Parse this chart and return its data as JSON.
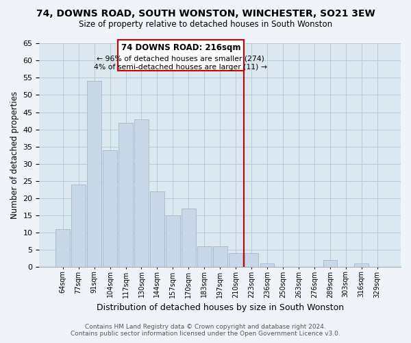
{
  "title": "74, DOWNS ROAD, SOUTH WONSTON, WINCHESTER, SO21 3EW",
  "subtitle": "Size of property relative to detached houses in South Wonston",
  "xlabel": "Distribution of detached houses by size in South Wonston",
  "ylabel": "Number of detached properties",
  "bar_labels": [
    "64sqm",
    "77sqm",
    "91sqm",
    "104sqm",
    "117sqm",
    "130sqm",
    "144sqm",
    "157sqm",
    "170sqm",
    "183sqm",
    "197sqm",
    "210sqm",
    "223sqm",
    "236sqm",
    "250sqm",
    "263sqm",
    "276sqm",
    "289sqm",
    "303sqm",
    "316sqm",
    "329sqm"
  ],
  "bar_values": [
    11,
    24,
    54,
    34,
    42,
    43,
    22,
    15,
    17,
    6,
    6,
    4,
    4,
    1,
    0,
    0,
    0,
    2,
    0,
    1,
    0
  ],
  "bar_color": "#c8d8e8",
  "bar_edge_color": "#a8bece",
  "ref_line_index": 11,
  "ref_line_label": "74 DOWNS ROAD: 216sqm",
  "annotation_line1": "← 96% of detached houses are smaller (274)",
  "annotation_line2": "4% of semi-detached houses are larger (11) →",
  "ref_line_color": "#cc0000",
  "box_edge_color": "#cc0000",
  "ylim": [
    0,
    65
  ],
  "yticks": [
    0,
    5,
    10,
    15,
    20,
    25,
    30,
    35,
    40,
    45,
    50,
    55,
    60,
    65
  ],
  "footer_line1": "Contains HM Land Registry data © Crown copyright and database right 2024.",
  "footer_line2": "Contains public sector information licensed under the Open Government Licence v3.0.",
  "background_color": "#f0f4f8",
  "plot_background_color": "#dce8f0",
  "grid_color": "#b8ccd8"
}
